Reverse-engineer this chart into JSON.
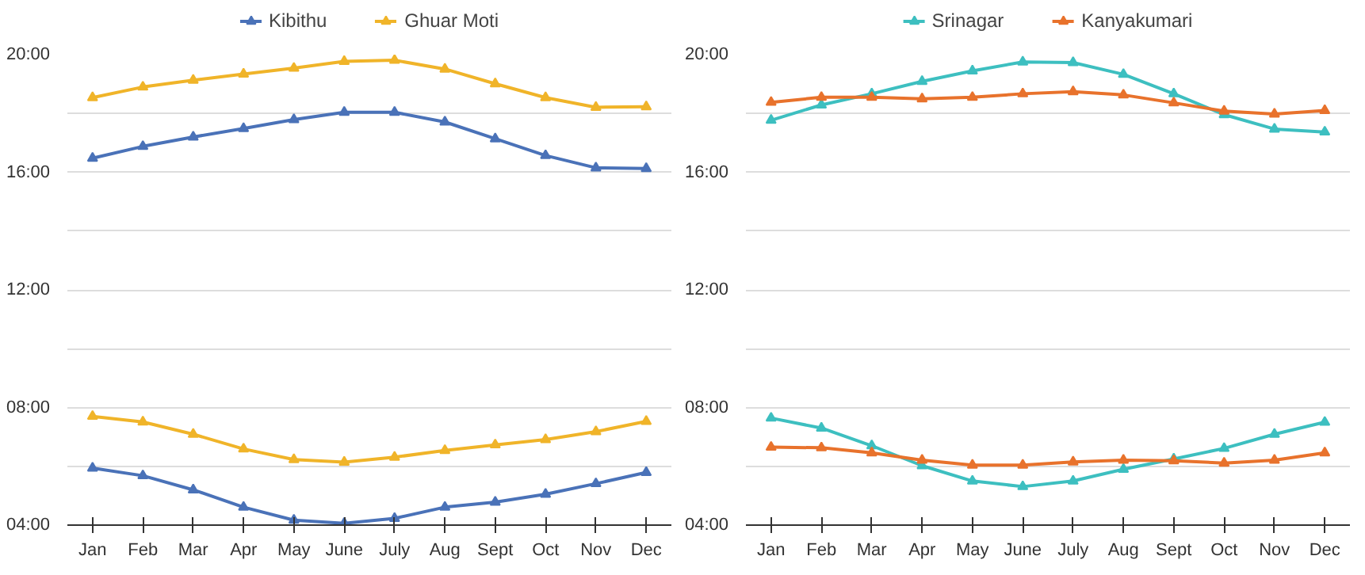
{
  "chart_data": [
    {
      "type": "line",
      "categories": [
        "Jan",
        "Feb",
        "Mar",
        "Apr",
        "May",
        "June",
        "July",
        "Aug",
        "Sept",
        "Oct",
        "Nov",
        "Dec"
      ],
      "ylim": [
        4,
        20
      ],
      "yticks": [
        {
          "value": 4,
          "label": "04:00"
        },
        {
          "value": 6,
          "label": null
        },
        {
          "value": 8,
          "label": "08:00"
        },
        {
          "value": 10,
          "label": null
        },
        {
          "value": 12,
          "label": "12:00"
        },
        {
          "value": 14,
          "label": null
        },
        {
          "value": 16,
          "label": "16:00"
        },
        {
          "value": 18,
          "label": null
        },
        {
          "value": 20,
          "label": "20:00"
        }
      ],
      "grid": "y",
      "legend": "top",
      "marker": "triangle",
      "line_style": "solid",
      "series": [
        {
          "name": "Kibithu",
          "color": "#4a72b8",
          "values": [
            16.48,
            16.88,
            17.2,
            17.49,
            17.79,
            18.04,
            18.04,
            17.71,
            17.14,
            16.57,
            16.15,
            16.13
          ]
        },
        {
          "name": "Ghuar Moti",
          "color": "#f0b429",
          "values": [
            18.54,
            18.9,
            19.13,
            19.34,
            19.54,
            19.77,
            19.81,
            19.51,
            19.01,
            18.54,
            18.21,
            18.23
          ]
        },
        {
          "color": "#4a72b8",
          "values": [
            5.94,
            5.68,
            5.2,
            4.61,
            4.17,
            4.06,
            4.23,
            4.61,
            4.78,
            5.05,
            5.41,
            5.79
          ]
        },
        {
          "color": "#f0b429",
          "values": [
            7.7,
            7.51,
            7.09,
            6.59,
            6.23,
            6.14,
            6.31,
            6.54,
            6.73,
            6.91,
            7.18,
            7.53
          ]
        }
      ]
    },
    {
      "type": "line",
      "categories": [
        "Jan",
        "Feb",
        "Mar",
        "Apr",
        "May",
        "June",
        "July",
        "Aug",
        "Sept",
        "Oct",
        "Nov",
        "Dec"
      ],
      "ylim": [
        4,
        20
      ],
      "yticks": [
        {
          "value": 4,
          "label": "04:00"
        },
        {
          "value": 6,
          "label": null
        },
        {
          "value": 8,
          "label": "08:00"
        },
        {
          "value": 10,
          "label": null
        },
        {
          "value": 12,
          "label": "12:00"
        },
        {
          "value": 14,
          "label": null
        },
        {
          "value": 16,
          "label": "16:00"
        },
        {
          "value": 18,
          "label": null
        },
        {
          "value": 20,
          "label": "20:00"
        }
      ],
      "grid": "y",
      "legend": "top",
      "marker": "triangle",
      "line_style": "solid",
      "series": [
        {
          "name": "Srinagar",
          "color": "#3dbfc0",
          "values": [
            17.77,
            18.29,
            18.67,
            19.09,
            19.45,
            19.75,
            19.73,
            19.33,
            18.67,
            17.96,
            17.47,
            17.37
          ]
        },
        {
          "name": "Kanyakumari",
          "color": "#e8722c",
          "values": [
            18.38,
            18.55,
            18.55,
            18.5,
            18.55,
            18.67,
            18.74,
            18.63,
            18.36,
            18.08,
            17.98,
            18.1
          ]
        },
        {
          "color": "#3dbfc0",
          "values": [
            7.64,
            7.3,
            6.7,
            6.02,
            5.5,
            5.31,
            5.5,
            5.9,
            6.25,
            6.61,
            7.09,
            7.5
          ]
        },
        {
          "color": "#e8722c",
          "values": [
            6.65,
            6.63,
            6.46,
            6.21,
            6.04,
            6.04,
            6.15,
            6.21,
            6.19,
            6.11,
            6.21,
            6.46
          ]
        }
      ]
    }
  ]
}
